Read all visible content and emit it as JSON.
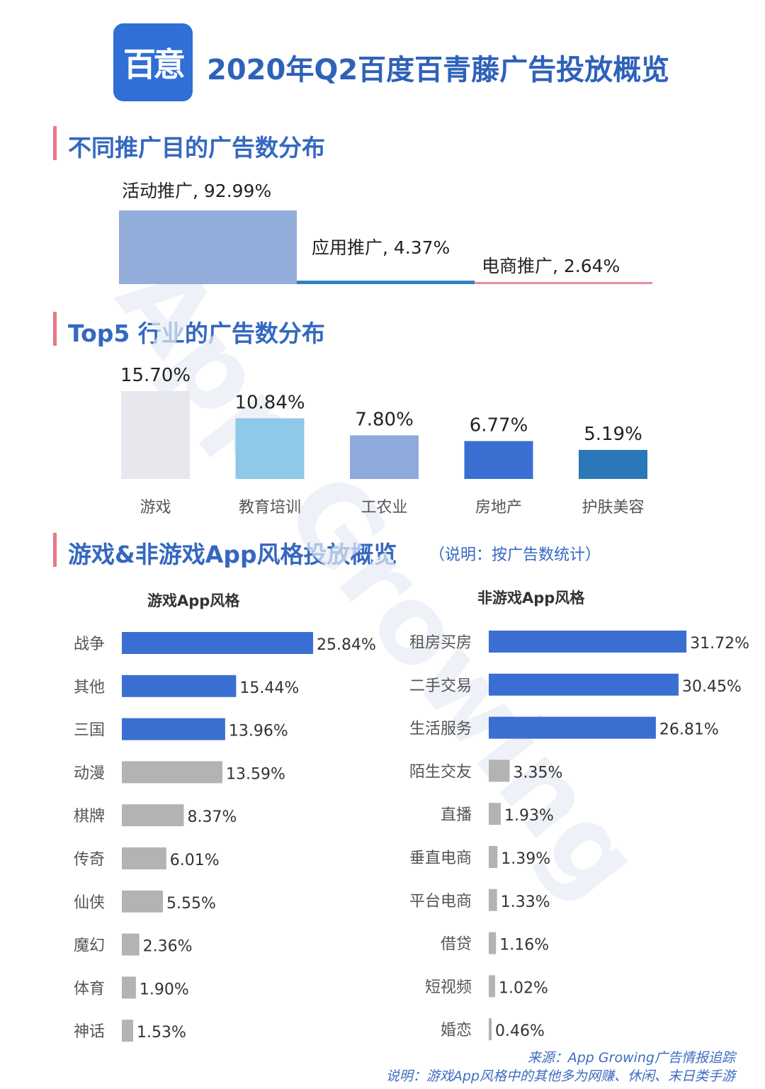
{
  "header": {
    "logo_text": "百意",
    "title": "2020年Q2百度百青藤广告投放概览"
  },
  "sections": {
    "purpose_title": "不同推广目的广告数分布",
    "industry_title": "Top5 行业的广告数分布",
    "style_title": "游戏&非游戏App风格投放概览",
    "style_note": "（说明：按广告数统计）",
    "game_subtitle": "游戏App风格",
    "nongame_subtitle": "非游戏App风格"
  },
  "watermark": "App Growing",
  "footer": {
    "source": "来源：App Growing广告情报追踪",
    "note": "说明：游戏App风格中的其他多为网赚、休闲、末日类手游"
  },
  "chart_data": [
    {
      "type": "bar",
      "id": "purpose",
      "categories": [
        "活动推广",
        "应用推广",
        "电商推广"
      ],
      "values": [
        92.99,
        4.37,
        2.64
      ],
      "unit": "%",
      "colors": [
        "#92add9",
        "#2f7ec4",
        "#e88e9a"
      ]
    },
    {
      "type": "bar",
      "id": "top5_industry",
      "categories": [
        "游戏",
        "教育培训",
        "工农业",
        "房地产",
        "护肤美容"
      ],
      "values": [
        15.7,
        10.84,
        7.8,
        6.77,
        5.19
      ],
      "unit": "%",
      "colors": [
        "#e6e8ee",
        "#8fc8e8",
        "#8eaadc",
        "#3a6fd1",
        "#2a78b8"
      ]
    },
    {
      "type": "bar",
      "id": "game_app_style",
      "orientation": "horizontal",
      "categories": [
        "战争",
        "其他",
        "三国",
        "动漫",
        "棋牌",
        "传奇",
        "仙侠",
        "魔幻",
        "体育",
        "神话"
      ],
      "values": [
        25.84,
        15.44,
        13.96,
        13.59,
        8.37,
        6.01,
        5.55,
        2.36,
        1.9,
        1.53
      ],
      "unit": "%",
      "highlight_top": 3,
      "colors": [
        "#3a6fd1",
        "#b3b3b3"
      ]
    },
    {
      "type": "bar",
      "id": "nongame_app_style",
      "orientation": "horizontal",
      "categories": [
        "租房买房",
        "二手交易",
        "生活服务",
        "陌生交友",
        "直播",
        "垂直电商",
        "平台电商",
        "借贷",
        "短视频",
        "婚恋"
      ],
      "values": [
        31.72,
        30.45,
        26.81,
        3.35,
        1.93,
        1.39,
        1.33,
        1.16,
        1.02,
        0.46
      ],
      "unit": "%",
      "highlight_top": 3,
      "colors": [
        "#3a6fd1",
        "#b3b3b3"
      ]
    }
  ]
}
